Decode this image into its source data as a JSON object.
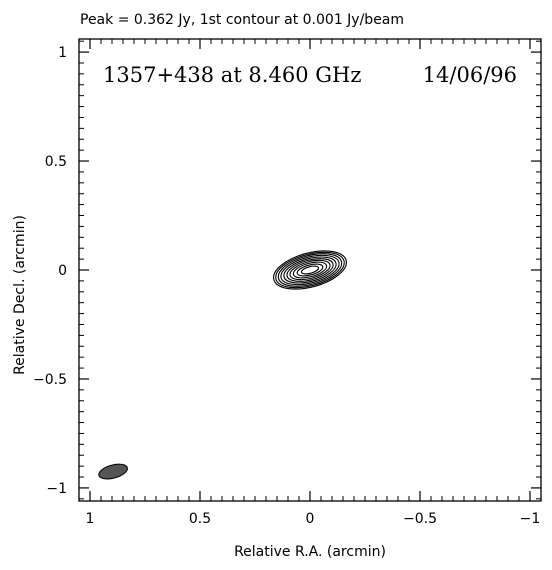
{
  "header": "Peak = 0.362 Jy, 1st contour at 0.001 Jy/beam",
  "chart_data": {
    "type": "contour",
    "title": "1357+438 at 8.460 GHz",
    "date": "14/06/96",
    "xlabel": "Relative R.A. (arcmin)",
    "ylabel": "Relative Decl. (arcmin)",
    "xlim": [
      1.05,
      -1.05
    ],
    "ylim": [
      -1.06,
      1.06
    ],
    "x_ticks": [
      {
        "value": 1,
        "label": "1"
      },
      {
        "value": 0.5,
        "label": "0.5"
      },
      {
        "value": 0,
        "label": "0"
      },
      {
        "value": -0.5,
        "label": "−0.5"
      },
      {
        "value": -1,
        "label": "−1"
      }
    ],
    "y_ticks": [
      {
        "value": 1,
        "label": "1"
      },
      {
        "value": 0.5,
        "label": "0.5"
      },
      {
        "value": 0,
        "label": "0"
      },
      {
        "value": -0.5,
        "label": "−0.5"
      },
      {
        "value": -1,
        "label": "−1"
      }
    ],
    "peak_jy": 0.362,
    "first_contour_jy_per_beam": 0.001,
    "source": {
      "center": [
        0.0,
        0.0
      ],
      "position_angle_deg": 75,
      "levels": [
        {
          "major": 0.17,
          "minor": 0.078
        },
        {
          "major": 0.16,
          "minor": 0.072
        },
        {
          "major": 0.148,
          "minor": 0.066
        },
        {
          "major": 0.136,
          "minor": 0.059
        },
        {
          "major": 0.122,
          "minor": 0.052
        },
        {
          "major": 0.108,
          "minor": 0.045
        },
        {
          "major": 0.094,
          "minor": 0.038
        },
        {
          "major": 0.078,
          "minor": 0.031
        },
        {
          "major": 0.06,
          "minor": 0.023
        },
        {
          "major": 0.04,
          "minor": 0.015
        }
      ]
    },
    "beam": {
      "center": [
        0.895,
        -0.925
      ],
      "major": 0.067,
      "minor": 0.03,
      "position_angle_deg": 75,
      "fill": "#555555"
    },
    "grid": false,
    "colors": {
      "contour": "#000000",
      "axes": "#000000"
    }
  }
}
